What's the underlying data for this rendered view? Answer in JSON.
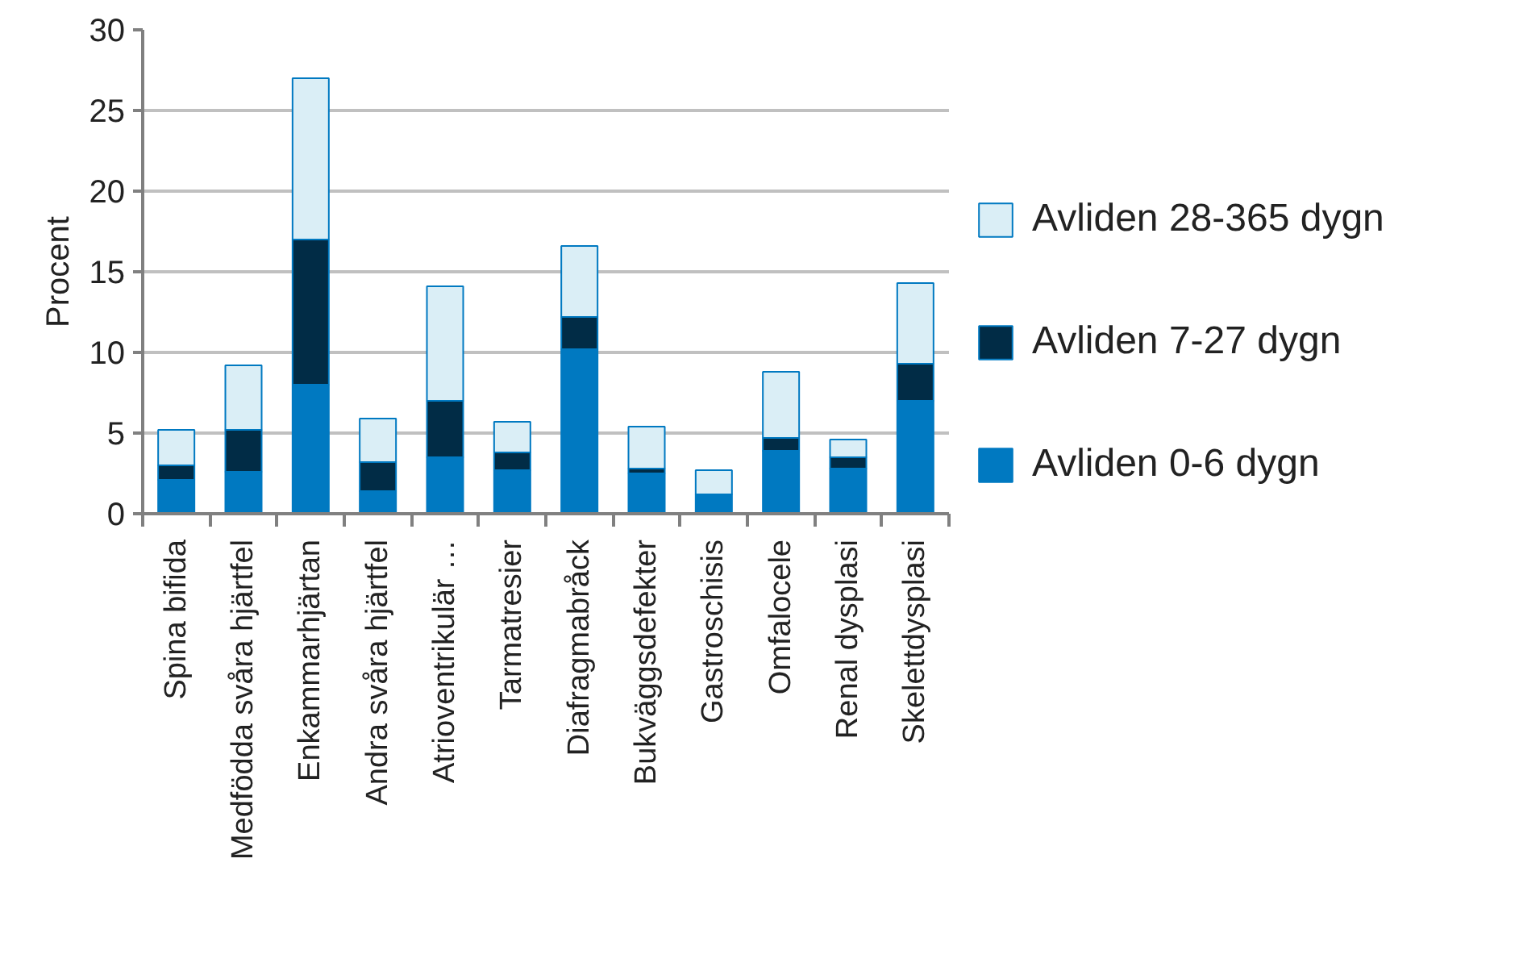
{
  "chart_data": {
    "type": "bar",
    "stacked": true,
    "ylabel": "Procent",
    "categories": [
      "Spina bifida",
      "Medfödda svåra hjärtfel",
      "Enkammarhjärtan",
      "Andra svåra hjärtfel",
      "Atrioventrikulär …",
      "Tarmatresier",
      "Diafragmabråck",
      "Bukväggsdefekter",
      "Gastroschisis",
      "Omfalocele",
      "Renal dysplasi",
      "Skelettdysplasi"
    ],
    "series": [
      {
        "name": "Avliden 0-6 dygn",
        "color": "#0079c1",
        "values": [
          2.1,
          2.6,
          8.0,
          1.4,
          3.5,
          2.7,
          10.2,
          2.5,
          1.2,
          3.9,
          2.8,
          7.0
        ]
      },
      {
        "name": "Avliden 7-27 dygn",
        "color": "#012c46",
        "values": [
          0.9,
          2.6,
          9.0,
          1.8,
          3.5,
          1.1,
          2.0,
          0.3,
          0,
          0.8,
          0.7,
          2.3
        ]
      },
      {
        "name": "Avliden 28-365 dygn",
        "color": "#daeef6",
        "values": [
          2.2,
          4.0,
          10.0,
          2.7,
          7.1,
          1.9,
          4.4,
          2.6,
          1.5,
          4.1,
          1.1,
          5.0
        ]
      }
    ],
    "ylim": [
      0,
      30
    ],
    "yticks": [
      0,
      5,
      10,
      15,
      20,
      25,
      30
    ],
    "grid": "y",
    "legend": "right"
  }
}
